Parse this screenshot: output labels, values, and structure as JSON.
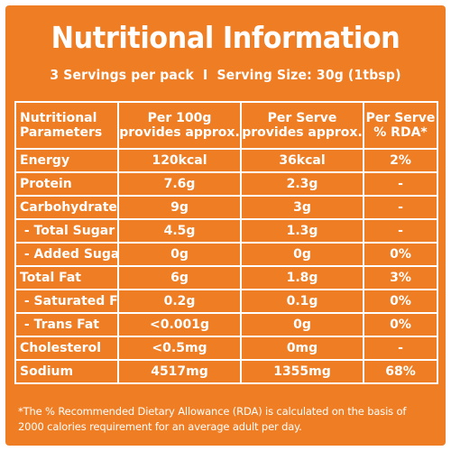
{
  "title": "Nutritional Information",
  "subtitle": "3 Servings per pack  I  Serving Size: 30g (1tbsp)",
  "table": {
    "headers": [
      {
        "line1": "Nutritional",
        "line2": "Parameters"
      },
      {
        "line1": "Per 100g",
        "line2": "provides approx."
      },
      {
        "line1": "Per Serve",
        "line2": "provides approx."
      },
      {
        "line1": "Per Serve",
        "line2": "% RDA*"
      }
    ],
    "rows": [
      {
        "param": "Energy",
        "per100": "120kcal",
        "serve": "36kcal",
        "rda": "2%"
      },
      {
        "param": "Protein",
        "per100": "7.6g",
        "serve": "2.3g",
        "rda": "-"
      },
      {
        "param": "Carbohydrates",
        "per100": "9g",
        "serve": "3g",
        "rda": "-"
      },
      {
        "param": " - Total Sugar",
        "per100": "4.5g",
        "serve": "1.3g",
        "rda": "-"
      },
      {
        "param": " - Added Sugar",
        "per100": "0g",
        "serve": "0g",
        "rda": "0%"
      },
      {
        "param": "Total Fat",
        "per100": "6g",
        "serve": "1.8g",
        "rda": "3%"
      },
      {
        "param": " - Saturated Fat",
        "per100": "0.2g",
        "serve": "0.1g",
        "rda": "0%"
      },
      {
        "param": " - Trans Fat",
        "per100": "<0.001g",
        "serve": "0g",
        "rda": "0%"
      },
      {
        "param": "Cholesterol",
        "per100": "<0.5mg",
        "serve": "0mg",
        "rda": "-"
      },
      {
        "param": "Sodium",
        "per100": "4517mg",
        "serve": "1355mg",
        "rda": "68%"
      }
    ]
  },
  "footnote": {
    "line1": "*The % Recommended Dietary Allowance (RDA) is calculated on the basis of",
    "line2": "2000 calories requirement for an average adult per day."
  },
  "colors": {
    "background": "#ef7d23",
    "text": "#ffffff"
  }
}
